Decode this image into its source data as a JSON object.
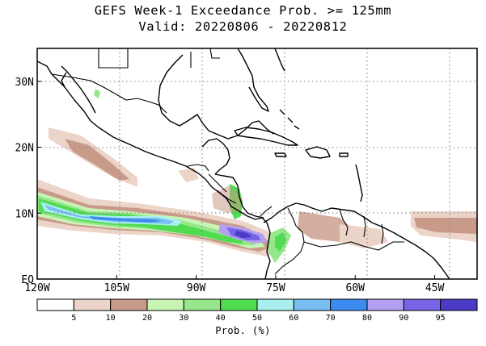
{
  "title_line1": "GEFS Week-1 Exceedance Prob. >= 125mm",
  "title_line2": "Valid: 20220806 - 20220812",
  "map": {
    "lon_range": [
      -120,
      -37
    ],
    "lat_range": [
      0,
      35
    ],
    "lon_ticks": [
      {
        "lon": -120,
        "label": "120W"
      },
      {
        "lon": -105,
        "label": "105W"
      },
      {
        "lon": -90,
        "label": "90W"
      },
      {
        "lon": -75,
        "label": "75W"
      },
      {
        "lon": -60,
        "label": "60W"
      },
      {
        "lon": -45,
        "label": "45W"
      }
    ],
    "lat_ticks": [
      {
        "lat": 0,
        "label": "EQ"
      },
      {
        "lat": 10,
        "label": "10N"
      },
      {
        "lat": 20,
        "label": "20N"
      },
      {
        "lat": 30,
        "label": "30N"
      }
    ],
    "grid": "dotted"
  },
  "colorbar": {
    "units_label": "Prob. (%)",
    "colors": [
      "#ffffff",
      "#ecd4c8",
      "#c89a8a",
      "#c8f5b4",
      "#96e68c",
      "#50dc50",
      "#aaf0f0",
      "#78bef0",
      "#3c8cf0",
      "#b4a0f0",
      "#7864e6",
      "#4b3cc8"
    ],
    "tick_labels": [
      "5",
      "10",
      "20",
      "30",
      "40",
      "50",
      "60",
      "70",
      "80",
      "90",
      "95"
    ]
  }
}
